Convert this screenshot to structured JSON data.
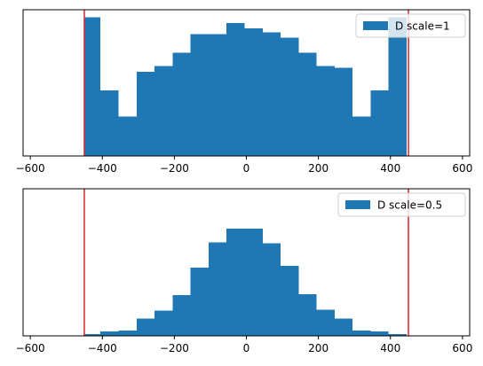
{
  "colors": {
    "bar": "#1f77b4",
    "vline": "#d62728",
    "axis": "#000000"
  },
  "chart_data": [
    {
      "type": "bar",
      "title": "",
      "xlabel": "",
      "ylabel": "",
      "xlim": [
        -620,
        620
      ],
      "ylim": [
        0,
        78
      ],
      "y_ticks_visible": false,
      "grid": false,
      "legend_placement": "top-right",
      "x_ticks": [
        -600,
        -400,
        -200,
        0,
        200,
        400,
        600
      ],
      "x_tick_labels": [
        "−600",
        "−400",
        "−200",
        "0",
        "200",
        "400",
        "600"
      ],
      "bin_edges": [
        -450,
        -405,
        -355,
        -305,
        -255,
        -205,
        -155,
        -105,
        -55,
        -5,
        45,
        95,
        145,
        195,
        245,
        295,
        345,
        395,
        445
      ],
      "series": [
        {
          "name": "D scale=1",
          "values": [
            74,
            35,
            21,
            45,
            48,
            55,
            65,
            65,
            71,
            68,
            66,
            63,
            55,
            48,
            47,
            21,
            35,
            74
          ]
        }
      ],
      "vlines": [
        -450,
        450
      ]
    },
    {
      "type": "bar",
      "title": "",
      "xlabel": "",
      "ylabel": "",
      "xlim": [
        -620,
        620
      ],
      "ylim": [
        0,
        162
      ],
      "y_ticks_visible": false,
      "grid": false,
      "legend_placement": "top-right",
      "x_ticks": [
        -600,
        -400,
        -200,
        0,
        200,
        400,
        600
      ],
      "x_tick_labels": [
        "−600",
        "−400",
        "−200",
        "0",
        "200",
        "400",
        "600"
      ],
      "bin_edges": [
        -450,
        -405,
        -355,
        -305,
        -255,
        -205,
        -155,
        -105,
        -55,
        -5,
        45,
        95,
        145,
        195,
        245,
        295,
        345,
        395,
        445
      ],
      "series": [
        {
          "name": "D scale=0.5",
          "values": [
            2,
            5,
            6,
            19,
            28,
            45,
            75,
            103,
            118,
            118,
            102,
            77,
            46,
            29,
            19,
            6,
            5,
            2
          ]
        }
      ],
      "vlines": [
        -450,
        450
      ]
    }
  ]
}
